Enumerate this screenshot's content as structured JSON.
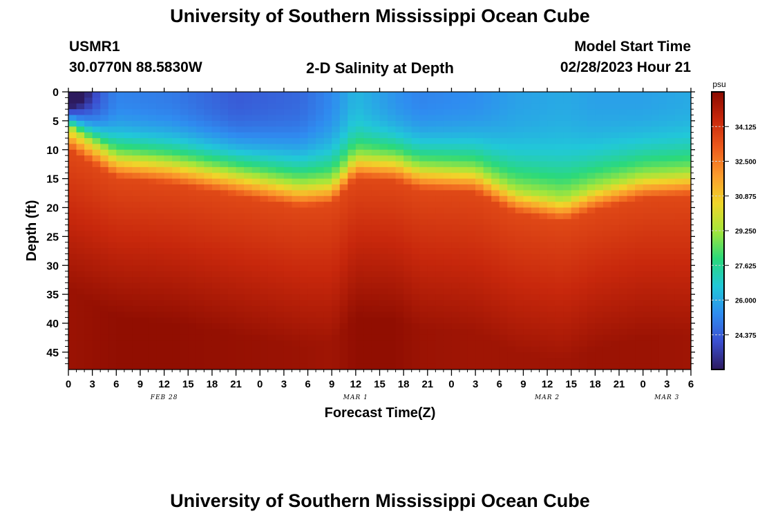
{
  "page": {
    "title": "University of Southern Mississippi Ocean Cube",
    "footer_title": "University of Southern Mississippi Ocean Cube",
    "station_id": "USMR1",
    "station_coords": "30.0770N  88.5830W",
    "plot_title": "2-D Salinity at Depth",
    "model_label": "Model Start Time",
    "model_time": "02/28/2023 Hour 21"
  },
  "chart_data": {
    "type": "heatmap",
    "title": "2-D Salinity at Depth",
    "xlabel": "Forecast Time(Z)",
    "ylabel": "Depth (ft)",
    "x_hours_range": [
      0,
      78
    ],
    "ylim": [
      0,
      48
    ],
    "y_inverted": true,
    "x_ticks": [
      "0",
      "3",
      "6",
      "9",
      "12",
      "15",
      "18",
      "21",
      "0",
      "3",
      "6",
      "9",
      "12",
      "15",
      "18",
      "21",
      "0",
      "3",
      "6",
      "9",
      "12",
      "15",
      "18",
      "21",
      "0",
      "3",
      "6"
    ],
    "y_ticks": [
      "0",
      "5",
      "10",
      "15",
      "20",
      "25",
      "30",
      "35",
      "40",
      "45"
    ],
    "date_labels": [
      {
        "label": "FEB 28",
        "hour": 12
      },
      {
        "label": "MAR 1",
        "hour": 36
      },
      {
        "label": "MAR 2",
        "hour": 60
      },
      {
        "label": "MAR 3",
        "hour": 75
      }
    ],
    "colorbar": {
      "unit": "psu",
      "range": [
        22.75,
        35.75
      ],
      "ticks": [
        "34.125",
        "32.500",
        "30.875",
        "29.250",
        "27.625",
        "26.000",
        "24.375"
      ],
      "colors": [
        "#2d1a5e",
        "#3b4fd0",
        "#2f8cf0",
        "#21c8d8",
        "#2bd97a",
        "#a6e63a",
        "#f0d52a",
        "#fb9a2c",
        "#ec5a1c",
        "#c8280c",
        "#8a0b00"
      ]
    },
    "profile_hours": [
      0,
      6,
      13,
      21,
      29,
      33,
      36,
      41,
      44,
      51,
      56,
      62,
      66,
      72,
      78
    ],
    "halocline_depth_ft": [
      6,
      11,
      12,
      14,
      16,
      15.5,
      11,
      11.5,
      13,
      13.5,
      17,
      18.5,
      16.5,
      14.5,
      14
    ],
    "surface_salinity_psu": [
      22.8,
      25.2,
      25.0,
      24.3,
      24.6,
      25.3,
      26.3,
      25.5,
      25.2,
      25.4,
      25.8,
      26.0,
      25.8,
      25.8,
      26.0
    ],
    "bottom_salinity_psu": [
      35.4,
      35.6,
      35.6,
      35.5,
      35.4,
      35.3,
      35.6,
      35.6,
      35.4,
      35.3,
      35.3,
      35.3,
      35.4,
      35.4,
      35.3
    ]
  }
}
